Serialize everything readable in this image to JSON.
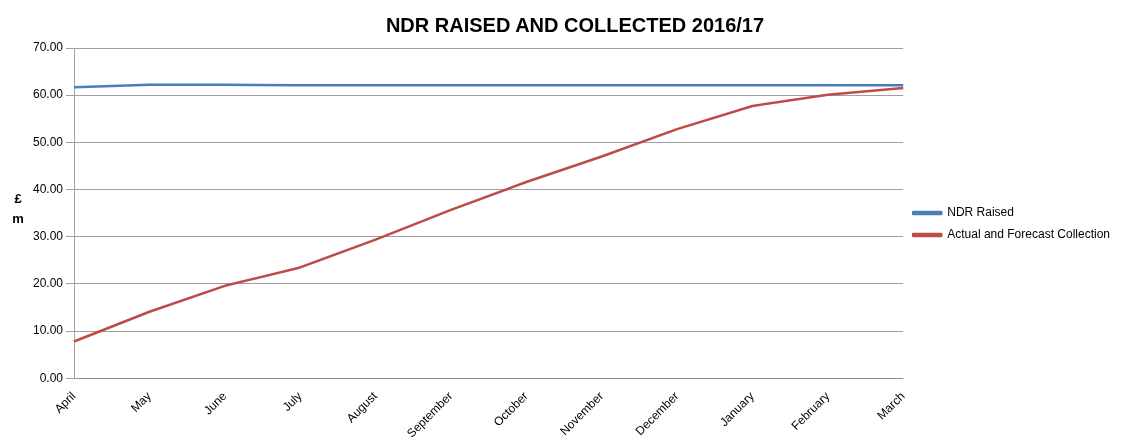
{
  "chart_data": {
    "type": "line",
    "title": "NDR RAISED AND COLLECTED 2016/17",
    "ylabel": "£ m",
    "categories": [
      "April",
      "May",
      "June",
      "July",
      "August",
      "September",
      "October",
      "November",
      "December",
      "January",
      "February",
      "March"
    ],
    "series": [
      {
        "name": "NDR Raised",
        "color": "#4a7ebb",
        "values": [
          61.7,
          62.2,
          62.2,
          62.1,
          62.1,
          62.1,
          62.1,
          62.1,
          62.1,
          62.1,
          62.1,
          62.1
        ]
      },
      {
        "name": "Actual and Forecast Collection",
        "color": "#be4b48",
        "values": [
          7.8,
          14.1,
          19.6,
          23.5,
          29.4,
          35.7,
          41.6,
          47.0,
          52.8,
          57.7,
          60.1,
          61.5
        ]
      }
    ],
    "ylim": [
      0,
      70
    ],
    "yticks": [
      {
        "value": 0,
        "label": "0.00"
      },
      {
        "value": 10,
        "label": "10.00"
      },
      {
        "value": 20,
        "label": "20.00"
      },
      {
        "value": 30,
        "label": "30.00"
      },
      {
        "value": 40,
        "label": "40.00"
      },
      {
        "value": 50,
        "label": "50.00"
      },
      {
        "value": 60,
        "label": "60.00"
      },
      {
        "value": 70,
        "label": "70.00"
      }
    ],
    "grid": "y",
    "legend": "right",
    "marker": "none",
    "line_style": "solid"
  }
}
